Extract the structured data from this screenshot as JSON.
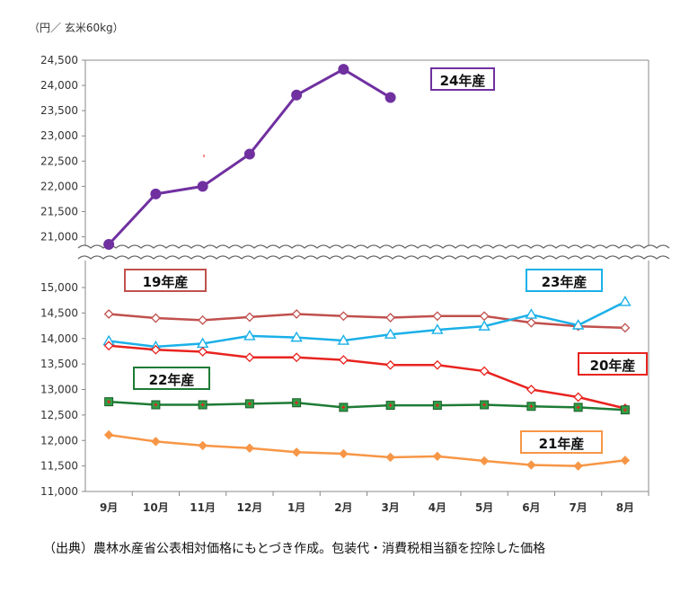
{
  "unit_label": "（円／ 玄米60kg）",
  "source_note": "（出典）農林水産省公表相対価格にもとづき作成。包装代・消費税相当額を控除した価格",
  "chart_data": {
    "type": "line",
    "categories": [
      "9月",
      "10月",
      "11月",
      "12月",
      "1月",
      "2月",
      "3月",
      "4月",
      "5月",
      "6月",
      "7月",
      "8月"
    ],
    "y_axis_broken": true,
    "upper_axis": {
      "ylim": [
        20850,
        24500
      ],
      "ticks": [
        21000,
        21500,
        22000,
        22500,
        23000,
        23500,
        24000,
        24500
      ]
    },
    "lower_axis": {
      "ylim": [
        11000,
        15000
      ],
      "ticks": [
        11000,
        11500,
        12000,
        12500,
        13000,
        13500,
        14000,
        14500,
        15000
      ]
    },
    "grid": false,
    "series": [
      {
        "name": "24年産",
        "axis": "upper",
        "color": "#7030A0",
        "marker": "circle",
        "values": [
          20850,
          21850,
          22000,
          22640,
          23810,
          24320,
          23760,
          null,
          null,
          null,
          null,
          null
        ]
      },
      {
        "name": "19年産",
        "axis": "lower",
        "color": "#C0504D",
        "marker": "diamond-open",
        "values": [
          14480,
          14400,
          14360,
          14420,
          14480,
          14440,
          14410,
          14440,
          14440,
          14310,
          14240,
          14210
        ]
      },
      {
        "name": "23年産",
        "axis": "lower",
        "color": "#1AB0E8",
        "marker": "triangle-open",
        "values": [
          13950,
          13840,
          13900,
          14050,
          14020,
          13960,
          14080,
          14170,
          14240,
          14470,
          14260,
          14720
        ]
      },
      {
        "name": "20年産",
        "axis": "lower",
        "color": "#E8231F",
        "marker": "diamond-open",
        "values": [
          13860,
          13780,
          13740,
          13630,
          13630,
          13580,
          13480,
          13480,
          13360,
          13000,
          12850,
          12630
        ]
      },
      {
        "name": "22年産",
        "axis": "lower",
        "color": "#1E7B35",
        "marker": "square",
        "values": [
          12760,
          12700,
          12700,
          12720,
          12740,
          12650,
          12690,
          12690,
          12700,
          12670,
          12650,
          12600
        ]
      },
      {
        "name": "21年産",
        "axis": "lower",
        "color": "#F79646",
        "marker": "diamond",
        "values": [
          12110,
          11980,
          11900,
          11850,
          11770,
          11740,
          11670,
          11690,
          11600,
          11520,
          11500,
          11610
        ]
      }
    ],
    "label_boxes": [
      {
        "text": "24年産",
        "border": "#7030A0"
      },
      {
        "text": "19年産",
        "border": "#C0504D"
      },
      {
        "text": "23年産",
        "border": "#1AB0E8"
      },
      {
        "text": "20年産",
        "border": "#E8231F"
      },
      {
        "text": "22年産",
        "border": "#1E7B35"
      },
      {
        "text": "21年産",
        "border": "#F79646"
      }
    ]
  }
}
